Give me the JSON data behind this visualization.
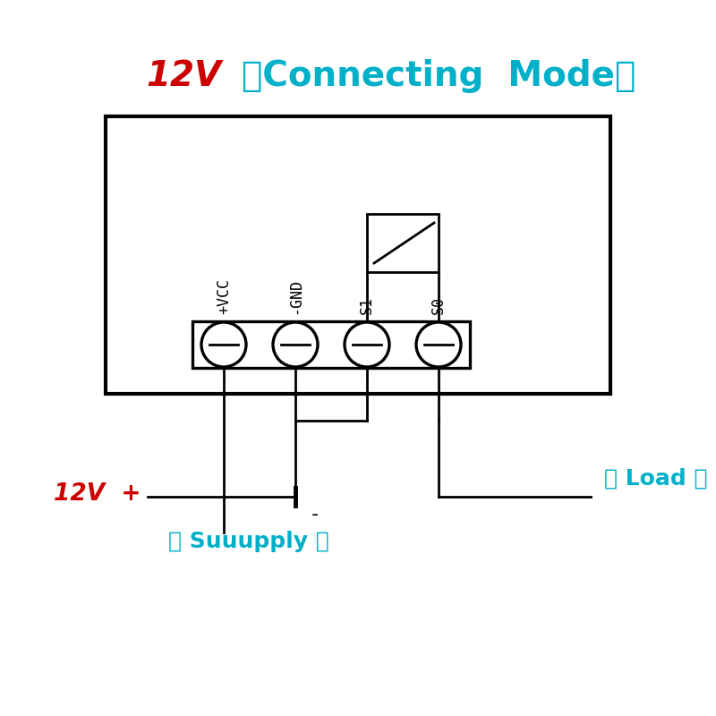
{
  "title_12v": "12V",
  "title_mode": "（Connecting  Mode）",
  "title_color_12v": "#cc0000",
  "title_color_mode": "#00b0c8",
  "title_fontsize": 28,
  "bg_color": "#ffffff",
  "box_color": "#000000",
  "label_vcc": "+VCC",
  "label_gnd": "-GND",
  "label_s1": "S1",
  "label_s0": "S0",
  "label_load": "（ Load ）",
  "label_supply": "（ Suuupply ）",
  "label_12v_plus": "12V  +",
  "label_minus": "-",
  "label_color_cyan": "#00b0c8",
  "label_color_red": "#cc0000",
  "label_color_black": "#000000",
  "lw": 2.0
}
